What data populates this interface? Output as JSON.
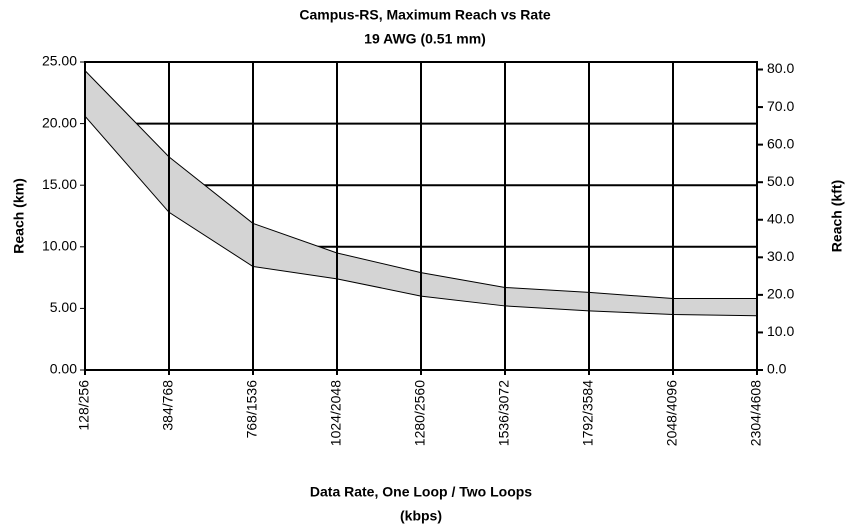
{
  "chart_data": {
    "type": "band",
    "title": [
      "Campus-RS, Maximum Reach vs Rate",
      "19 AWG (0.51 mm)"
    ],
    "ylabel": "Reach (km)",
    "y2label": "Reach (kft)",
    "xlabel": [
      "Data Rate, One Loop / Two Loops",
      "(kbps)"
    ],
    "categories": [
      "128/256",
      "384/768",
      "768/1536",
      "1024/2048",
      "1280/2560",
      "1536/3072",
      "1792/3584",
      "2048/4096",
      "2304/4608"
    ],
    "series": [
      {
        "name": "upper",
        "color": "#d4d4d4",
        "values": [
          24.3,
          17.3,
          11.9,
          9.5,
          7.9,
          6.7,
          6.3,
          5.8,
          5.8
        ]
      },
      {
        "name": "lower",
        "color": "#d4d4d4",
        "values": [
          20.6,
          12.8,
          8.4,
          7.4,
          6.0,
          5.2,
          4.8,
          4.5,
          4.4
        ]
      }
    ],
    "ylim": [
      0,
      25
    ],
    "yticks": [
      {
        "value": 0,
        "label": "0.00"
      },
      {
        "value": 5,
        "label": "5.00"
      },
      {
        "value": 10,
        "label": "10.00"
      },
      {
        "value": 15,
        "label": "15.00"
      },
      {
        "value": 20,
        "label": "20.00"
      },
      {
        "value": 25,
        "label": "25.00"
      }
    ],
    "y2lim": [
      0,
      82
    ],
    "y2ticks": [
      {
        "value": 0,
        "label": "0.0"
      },
      {
        "value": 10,
        "label": "10.0"
      },
      {
        "value": 20,
        "label": "20.0"
      },
      {
        "value": 30,
        "label": "30.0"
      },
      {
        "value": 40,
        "label": "40.0"
      },
      {
        "value": 50,
        "label": "50.0"
      },
      {
        "value": 60,
        "label": "60.0"
      },
      {
        "value": 70,
        "label": "70.0"
      },
      {
        "value": 80,
        "label": "80.0"
      }
    ],
    "grid": true
  }
}
